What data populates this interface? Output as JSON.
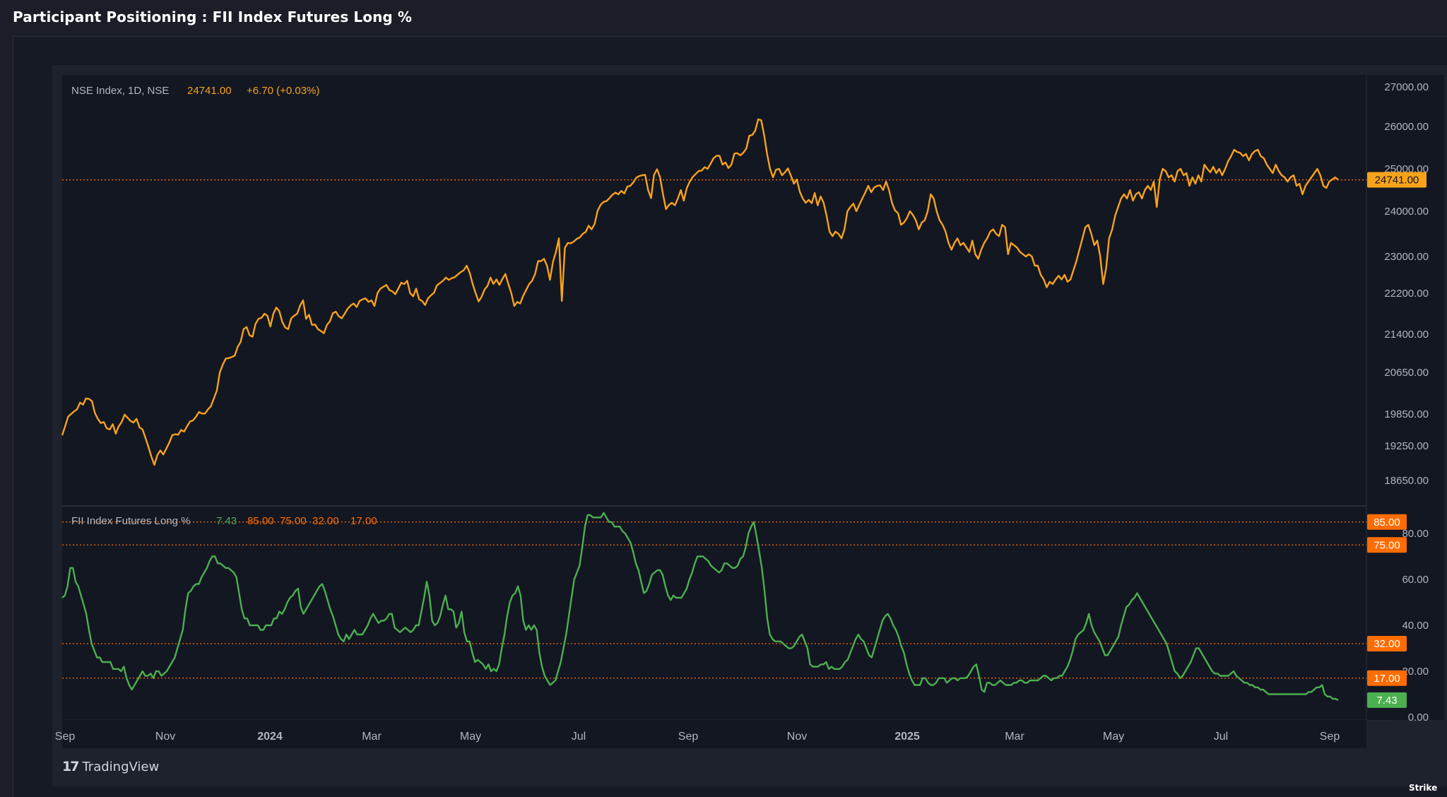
{
  "page": {
    "title": "Participant Positioning : FII Index Futures Long %"
  },
  "branding": {
    "tradingview": "TradingView",
    "watermark": "Strike"
  },
  "colors": {
    "index_line": "#f7a21b",
    "fii_line": "#4caf50",
    "level_marker": "#ff6d00",
    "background": "#131722"
  },
  "chart_data": [
    {
      "type": "line",
      "legend": {
        "symbol": "NSE Index, 1D, NSE",
        "last": "24741.00",
        "change": "+6.70 (+0.03%)"
      },
      "yticks": [
        "27000.00",
        "26000.00",
        "25000.00",
        "24000.00",
        "23000.00",
        "22200.00",
        "21400.00",
        "20650.00",
        "19850.00",
        "19250.00",
        "18650.00"
      ],
      "last_value_label": "24741.00",
      "last_value": 24741,
      "series": [
        {
          "values": [
            19450,
            19620,
            19800,
            19850,
            19900,
            19940,
            20070,
            20030,
            20150,
            20140,
            20100,
            19870,
            19760,
            19680,
            19700,
            19580,
            19560,
            19660,
            19480,
            19620,
            19700,
            19840,
            19780,
            19720,
            19690,
            19760,
            19600,
            19560,
            19400,
            19230,
            19060,
            18920,
            19090,
            19170,
            19100,
            19200,
            19310,
            19450,
            19470,
            19460,
            19550,
            19520,
            19620,
            19710,
            19730,
            19800,
            19890,
            19860,
            19860,
            19940,
            20000,
            20150,
            20300,
            20650,
            20800,
            20920,
            20930,
            20950,
            20980,
            21150,
            21250,
            21500,
            21540,
            21380,
            21350,
            21600,
            21700,
            21720,
            21800,
            21760,
            21550,
            21800,
            21920,
            21850,
            21640,
            21530,
            21500,
            21710,
            21760,
            21800,
            21960,
            22060,
            21700,
            21780,
            21580,
            21590,
            21500,
            21460,
            21420,
            21580,
            21650,
            21810,
            21840,
            21750,
            21710,
            21800,
            21900,
            21960,
            22000,
            21930,
            22050,
            22080,
            22100,
            22030,
            22060,
            21950,
            22200,
            22300,
            22340,
            22380,
            22270,
            22240,
            22180,
            22300,
            22430,
            22400,
            22470,
            22200,
            22140,
            22300,
            22080,
            22050,
            21970,
            22100,
            22160,
            22210,
            22370,
            22420,
            22470,
            22540,
            22490,
            22530,
            22550,
            22610,
            22660,
            22700,
            22800,
            22650,
            22400,
            22200,
            22040,
            22130,
            22280,
            22360,
            22540,
            22400,
            22500,
            22380,
            22510,
            22620,
            22400,
            22200,
            21950,
            22030,
            22000,
            22150,
            22270,
            22400,
            22470,
            22620,
            22900,
            22900,
            22950,
            22800,
            22490,
            22880,
            23100,
            23400,
            22050,
            23190,
            23300,
            23290,
            23330,
            23390,
            23420,
            23500,
            23540,
            23680,
            23600,
            23720,
            24010,
            24150,
            24220,
            24240,
            24310,
            24390,
            24440,
            24400,
            24480,
            24420,
            24580,
            24600,
            24680,
            24790,
            24830,
            24850,
            24860,
            24500,
            24310,
            24860,
            24990,
            24800,
            24400,
            24050,
            24150,
            24200,
            24140,
            24300,
            24500,
            24250,
            24550,
            24700,
            24810,
            24880,
            24950,
            24960,
            25040,
            25000,
            25120,
            25250,
            25310,
            25310,
            25100,
            25150,
            25020,
            25100,
            25360,
            25370,
            25320,
            25380,
            25480,
            25780,
            25800,
            25900,
            26180,
            26160,
            25800,
            25350,
            25000,
            24800,
            24980,
            25000,
            24850,
            24920,
            25010,
            24840,
            24650,
            24750,
            24460,
            24300,
            24200,
            24270,
            24190,
            24430,
            24140,
            24350,
            24200,
            23900,
            23550,
            23450,
            23550,
            23500,
            23400,
            23600,
            24000,
            24100,
            24180,
            24000,
            24150,
            24300,
            24440,
            24600,
            24450,
            24560,
            24600,
            24610,
            24500,
            24700,
            24500,
            24200,
            24020,
            23960,
            23700,
            23750,
            23850,
            24000,
            23920,
            23800,
            23600,
            23750,
            23800,
            24000,
            24400,
            24300,
            24000,
            23800,
            23700,
            23550,
            23300,
            23150,
            23300,
            23400,
            23250,
            23300,
            23200,
            23100,
            23350,
            23050,
            22950,
            23150,
            23300,
            23400,
            23550,
            23600,
            23500,
            23450,
            23700,
            23650,
            23050,
            23300,
            23250,
            23200,
            23100,
            23050,
            23000,
            23050,
            23000,
            22800,
            22800,
            22600,
            22500,
            22330,
            22450,
            22400,
            22500,
            22580,
            22500,
            22600,
            22450,
            22500,
            22700,
            22900,
            23150,
            23400,
            23650,
            23700,
            23500,
            23250,
            23350,
            23000,
            22400,
            22750,
            23400,
            23600,
            23900,
            24100,
            24300,
            24400,
            24300,
            24500,
            24250,
            24400,
            24450,
            24300,
            24500,
            24600,
            24500,
            24700,
            24100,
            24750,
            25000,
            24950,
            24800,
            24850,
            24700,
            24950,
            25000,
            24850,
            24900,
            24600,
            24800,
            24650,
            24850,
            24700,
            25100,
            25000,
            24920,
            25050,
            24900,
            25000,
            24850,
            25000,
            25180,
            25300,
            25450,
            25400,
            25380,
            25300,
            25350,
            25200,
            25350,
            25420,
            25450,
            25300,
            25250,
            25100,
            25000,
            24900,
            25100,
            24950,
            24850,
            24800,
            24700,
            24800,
            24850,
            24600,
            24650,
            24400,
            24600,
            24700,
            24800,
            24900,
            25000,
            24850,
            24600,
            24550,
            24700,
            24750,
            24800,
            24741
          ]
        }
      ]
    },
    {
      "type": "line",
      "legend": {
        "name": "FII Index Futures Long %",
        "values": [
          "7.43",
          "85.00",
          "75.00",
          "32.00",
          "17.00"
        ]
      },
      "yticks": [
        "80.00",
        "60.00",
        "40.00",
        "20.00",
        "0.00"
      ],
      "levels": [
        {
          "value": 85,
          "label": "85.00"
        },
        {
          "value": 75,
          "label": "75.00"
        },
        {
          "value": 32,
          "label": "32.00"
        },
        {
          "value": 17,
          "label": "17.00"
        }
      ],
      "last_value_label": "7.43",
      "last_value": 7.43,
      "series": [
        {
          "values": [
            52,
            53,
            57,
            65,
            65,
            59,
            57,
            53,
            49,
            45,
            38,
            32,
            29,
            26,
            26,
            24,
            24,
            24,
            24,
            21,
            21,
            21,
            20,
            22,
            17,
            14,
            12,
            14,
            16,
            18,
            20,
            18,
            18,
            19,
            17,
            20,
            20,
            18,
            19,
            20,
            22,
            24,
            26,
            30,
            34,
            38,
            47,
            54,
            55,
            57,
            58,
            58,
            61,
            63,
            65,
            68,
            70,
            70,
            67,
            67,
            66,
            65,
            65,
            64,
            63,
            61,
            54,
            47,
            43,
            43,
            40,
            40,
            40,
            40,
            38,
            38,
            40,
            40,
            40,
            43,
            43,
            46,
            45,
            47,
            50,
            52,
            53,
            55,
            56,
            48,
            45,
            47,
            49,
            51,
            53,
            55,
            57,
            58,
            55,
            51,
            47,
            44,
            40,
            36,
            34,
            33,
            36,
            34,
            36,
            38,
            36,
            36,
            36,
            38,
            40,
            43,
            45,
            43,
            41,
            42,
            42,
            43,
            45,
            45,
            39,
            38,
            37,
            38,
            39,
            38,
            37,
            38,
            40,
            40,
            46,
            52,
            59,
            53,
            42,
            40,
            41,
            44,
            49,
            53,
            47,
            47,
            46,
            39,
            41,
            46,
            37,
            33,
            33,
            28,
            24,
            25,
            24,
            23,
            21,
            23,
            20,
            21,
            20,
            23,
            30,
            36,
            44,
            50,
            53,
            54,
            57,
            53,
            42,
            38,
            40,
            38,
            40,
            38,
            28,
            22,
            18,
            16,
            14,
            15,
            16,
            20,
            24,
            30,
            36,
            44,
            52,
            60,
            63,
            66,
            74,
            83,
            88,
            88,
            87,
            87,
            87,
            87,
            89,
            87,
            85,
            85,
            83,
            83,
            83,
            81,
            80,
            78,
            76,
            72,
            67,
            64,
            59,
            54,
            55,
            58,
            62,
            63,
            64,
            64,
            62,
            57,
            53,
            51,
            53,
            52,
            52,
            52,
            54,
            56,
            60,
            63,
            67,
            70,
            70,
            70,
            69,
            68,
            66,
            65,
            64,
            63,
            64,
            67,
            67,
            66,
            65,
            65,
            66,
            69,
            70,
            74,
            80,
            83,
            85,
            79,
            72,
            65,
            55,
            43,
            36,
            34,
            33,
            33,
            33,
            32,
            31,
            30,
            30,
            31,
            33,
            35,
            36,
            33,
            30,
            23,
            22,
            22,
            22,
            23,
            23,
            24,
            21,
            22,
            21,
            21,
            21,
            22,
            24,
            25,
            28,
            31,
            34,
            36,
            34,
            33,
            30,
            27,
            26,
            30,
            34,
            38,
            42,
            44,
            45,
            43,
            40,
            38,
            35,
            31,
            28,
            23,
            19,
            16,
            14,
            14,
            14,
            17,
            17,
            15,
            14,
            14,
            15,
            17,
            17,
            17,
            15,
            16,
            17,
            17,
            16,
            17,
            17,
            17,
            18,
            20,
            22,
            23,
            18,
            12,
            11,
            15,
            15,
            14,
            14,
            15,
            16,
            15,
            14,
            14,
            14,
            15,
            15,
            16,
            16,
            15,
            15,
            16,
            16,
            16,
            16,
            17,
            18,
            18,
            17,
            16,
            17,
            17,
            18,
            18,
            20,
            22,
            25,
            29,
            34,
            36,
            37,
            38,
            41,
            45,
            40,
            37,
            35,
            33,
            30,
            27,
            27,
            29,
            31,
            33,
            35,
            40,
            44,
            48,
            49,
            51,
            52,
            54,
            52,
            50,
            48,
            46,
            44,
            42,
            40,
            38,
            36,
            34,
            32,
            28,
            24,
            20,
            19,
            17,
            18,
            20,
            22,
            24,
            27,
            30,
            30,
            28,
            26,
            24,
            22,
            20,
            19,
            19,
            18,
            18,
            18,
            18,
            19,
            20,
            18,
            17,
            16,
            15,
            15,
            14,
            14,
            13,
            13,
            12,
            12,
            11,
            10,
            10,
            10,
            10,
            10,
            10,
            10,
            10,
            10,
            10,
            10,
            10,
            10,
            10,
            10,
            11,
            11,
            12,
            13,
            13,
            14,
            10,
            9,
            9,
            8,
            8,
            7.43
          ]
        }
      ]
    }
  ],
  "x_axis": {
    "labels": [
      "Sep",
      "Nov",
      "2024",
      "Mar",
      "May",
      "Jul",
      "Sep",
      "Nov",
      "2025",
      "Mar",
      "May",
      "Jul",
      "Sep"
    ],
    "bold": [
      false,
      false,
      true,
      false,
      false,
      false,
      false,
      false,
      true,
      false,
      false,
      false,
      false
    ]
  }
}
